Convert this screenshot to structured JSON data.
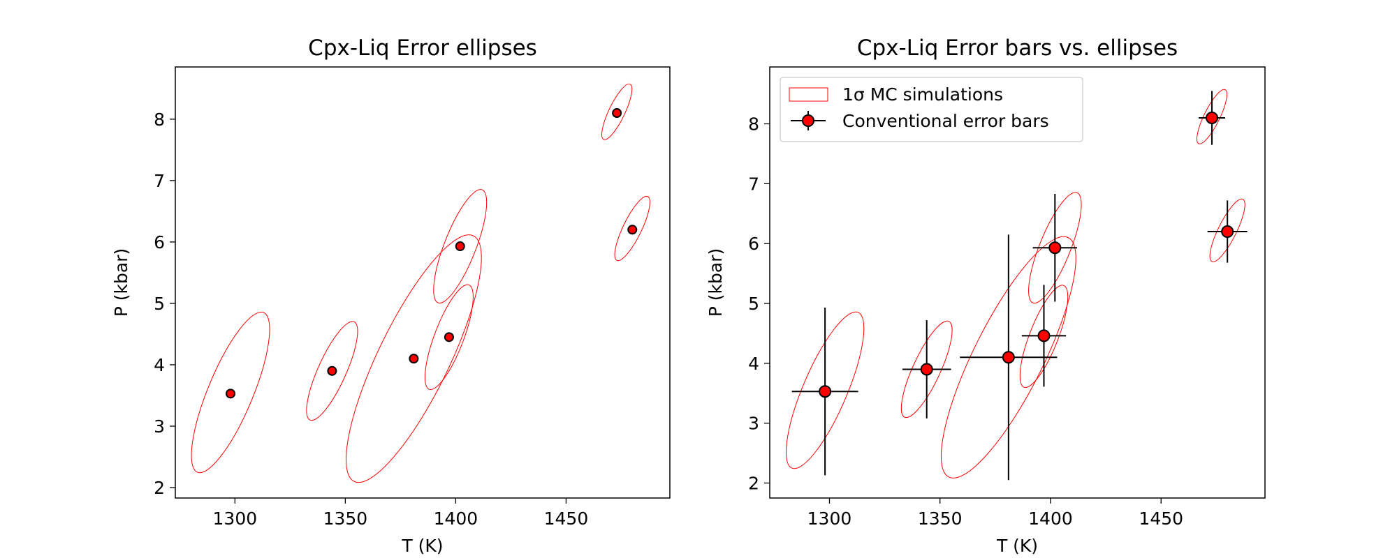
{
  "chart_data": [
    {
      "type": "scatter",
      "title": "Cpx-Liq Error ellipses",
      "xlabel": "T (K)",
      "ylabel": "P (kbar)",
      "xlim": [
        1273,
        1497
      ],
      "ylim": [
        1.83,
        8.85
      ],
      "xticks": [
        1300,
        1350,
        1400,
        1450
      ],
      "yticks": [
        2,
        3,
        4,
        5,
        6,
        7,
        8
      ],
      "grid": false,
      "series": [
        {
          "points": [
            {
              "x": 1298,
              "y": 3.53
            },
            {
              "x": 1344,
              "y": 3.9
            },
            {
              "x": 1381,
              "y": 4.1
            },
            {
              "x": 1397,
              "y": 4.45
            },
            {
              "x": 1402,
              "y": 5.93
            },
            {
              "x": 1473,
              "y": 8.1
            },
            {
              "x": 1480,
              "y": 6.2
            }
          ]
        }
      ],
      "ellipses": [
        {
          "cx": 1298,
          "cy": 3.55,
          "sx": 15,
          "sy": 1.3
        },
        {
          "cx": 1344,
          "cy": 3.9,
          "sx": 10,
          "sy": 0.8
        },
        {
          "cx": 1381,
          "cy": 4.1,
          "sx": 27,
          "sy": 2.0
        },
        {
          "cx": 1397,
          "cy": 4.45,
          "sx": 9,
          "sy": 0.85
        },
        {
          "cx": 1402,
          "cy": 5.93,
          "sx": 10,
          "sy": 0.92
        },
        {
          "cx": 1473,
          "cy": 8.12,
          "sx": 6,
          "sy": 0.45
        },
        {
          "cx": 1480,
          "cy": 6.22,
          "sx": 7,
          "sy": 0.52
        }
      ],
      "colors": {
        "ellipse": "#ff0000",
        "marker": "#ff0000",
        "edge": "#000000"
      }
    },
    {
      "type": "scatter",
      "title": "Cpx-Liq Error bars vs. ellipses",
      "xlabel": "T (K)",
      "ylabel": "P (kbar)",
      "xlim": [
        1273,
        1497
      ],
      "ylim": [
        1.75,
        8.95
      ],
      "xticks": [
        1300,
        1350,
        1400,
        1450
      ],
      "yticks": [
        2,
        3,
        4,
        5,
        6,
        7,
        8
      ],
      "grid": false,
      "legend": {
        "placement": "top-left",
        "entries": [
          "1σ MC simulations",
          "Conventional error bars"
        ]
      },
      "series": [
        {
          "name": "Conventional error bars",
          "points": [
            {
              "x": 1298,
              "y": 3.53,
              "xerr": 15,
              "yerr": 1.4
            },
            {
              "x": 1344,
              "y": 3.9,
              "xerr": 11,
              "yerr": 0.82
            },
            {
              "x": 1381,
              "y": 4.1,
              "xerr": 22,
              "yerr": 2.05
            },
            {
              "x": 1397,
              "y": 4.46,
              "xerr": 10,
              "yerr": 0.85
            },
            {
              "x": 1402,
              "y": 5.93,
              "xerr": 10,
              "yerr": 0.9
            },
            {
              "x": 1473,
              "y": 8.1,
              "xerr": 6,
              "yerr": 0.45
            },
            {
              "x": 1480,
              "y": 6.2,
              "xerr": 9,
              "yerr": 0.52
            }
          ]
        }
      ],
      "ellipses": [
        {
          "cx": 1298,
          "cy": 3.55,
          "sx": 15,
          "sy": 1.3
        },
        {
          "cx": 1344,
          "cy": 3.9,
          "sx": 10,
          "sy": 0.8
        },
        {
          "cx": 1381,
          "cy": 4.1,
          "sx": 27,
          "sy": 2.0
        },
        {
          "cx": 1397,
          "cy": 4.45,
          "sx": 9,
          "sy": 0.85
        },
        {
          "cx": 1402,
          "cy": 5.93,
          "sx": 10,
          "sy": 0.92
        },
        {
          "cx": 1473,
          "cy": 8.12,
          "sx": 6,
          "sy": 0.45
        },
        {
          "cx": 1480,
          "cy": 6.22,
          "sx": 7,
          "sy": 0.52
        }
      ],
      "colors": {
        "ellipse": "#ff0000",
        "marker": "#ff0000",
        "edge": "#000000",
        "errorbar": "#000000"
      }
    }
  ]
}
